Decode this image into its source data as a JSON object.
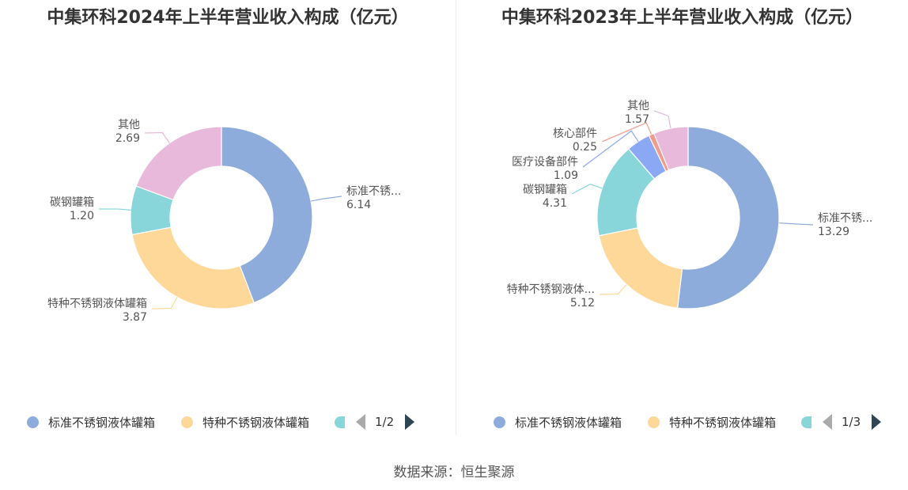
{
  "chart_data": [
    {
      "type": "pie",
      "title": "中集环科2024年上半年营业收入构成（亿元）",
      "categories": [
        "标准不锈钢液体罐箱",
        "特种不锈钢液体罐箱",
        "碳钢罐箱",
        "其他"
      ],
      "label_names": [
        "标准不锈...",
        "特种不锈钢液体罐箱",
        "碳钢罐箱",
        "其他"
      ],
      "values": [
        6.14,
        3.87,
        1.2,
        2.69
      ],
      "value_labels": [
        "6.14",
        "3.87",
        "1.20",
        "2.69"
      ],
      "colors": [
        "#8eacdb",
        "#fdd898",
        "#88d6da",
        "#e8b9da"
      ],
      "legend": {
        "position": "bottom",
        "items": [
          "标准不锈钢液体罐箱",
          "特种不锈钢液体罐箱"
        ],
        "page": "1/2"
      }
    },
    {
      "type": "pie",
      "title": "中集环科2023年上半年营业收入构成（亿元）",
      "categories": [
        "标准不锈钢液体罐箱",
        "特种不锈钢液体罐箱",
        "碳钢罐箱",
        "医疗设备部件",
        "核心部件",
        "其他"
      ],
      "label_names": [
        "标准不锈...",
        "特种不锈钢液体...",
        "碳钢罐箱",
        "医疗设备部件",
        "核心部件",
        "其他"
      ],
      "values": [
        13.29,
        5.12,
        4.31,
        1.09,
        0.25,
        1.57
      ],
      "value_labels": [
        "13.29",
        "5.12",
        "4.31",
        "1.09",
        "0.25",
        "1.57"
      ],
      "colors": [
        "#8eacdb",
        "#fdd898",
        "#88d6da",
        "#8aa8f4",
        "#f29b8f",
        "#e8b9da"
      ],
      "legend": {
        "position": "bottom",
        "items": [
          "标准不锈钢液体罐箱",
          "特种不锈钢液体罐箱"
        ],
        "page": "1/3"
      }
    }
  ],
  "source": "数据来源：恒生聚源"
}
